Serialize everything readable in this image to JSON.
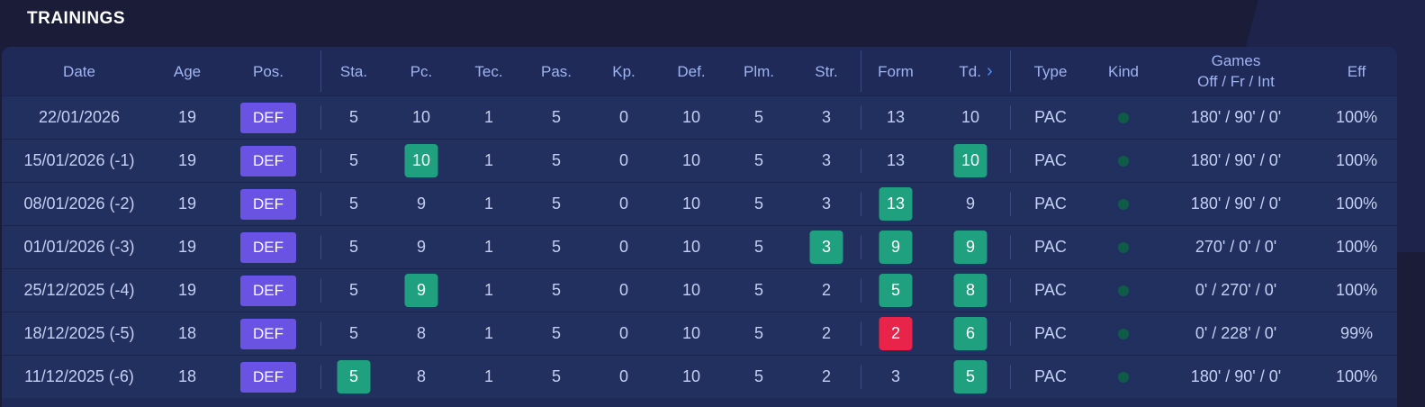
{
  "section_title": "TRAININGS",
  "colors": {
    "badge_pos": "#6a52e3",
    "highlight_green": "#1fa07e",
    "highlight_red": "#e8244a",
    "kind_dot": "#0e5c48"
  },
  "columns": {
    "date": "Date",
    "age": "Age",
    "pos": "Pos.",
    "sta": "Sta.",
    "pc": "Pc.",
    "tec": "Tec.",
    "pas": "Pas.",
    "kp": "Kp.",
    "def": "Def.",
    "plm": "Plm.",
    "str": "Str.",
    "form": "Form",
    "td": "Td.",
    "type": "Type",
    "kind": "Kind",
    "games_line1": "Games",
    "games_line2": "Off / Fr / Int",
    "eff": "Eff"
  },
  "td_chevron_icon": "chevron-right-icon",
  "rows": [
    {
      "date": "22/01/2026",
      "age": "19",
      "pos": "DEF",
      "sta": "5",
      "pc": "10",
      "tec": "1",
      "pas": "5",
      "kp": "0",
      "def": "10",
      "plm": "5",
      "str": "3",
      "form": "13",
      "td": "10",
      "type": "PAC",
      "games": "180' / 90' / 0'",
      "eff": "100%",
      "hl": {}
    },
    {
      "date": "15/01/2026 (-1)",
      "age": "19",
      "pos": "DEF",
      "sta": "5",
      "pc": "10",
      "tec": "1",
      "pas": "5",
      "kp": "0",
      "def": "10",
      "plm": "5",
      "str": "3",
      "form": "13",
      "td": "10",
      "type": "PAC",
      "games": "180' / 90' / 0'",
      "eff": "100%",
      "hl": {
        "pc": "green",
        "td": "green"
      }
    },
    {
      "date": "08/01/2026 (-2)",
      "age": "19",
      "pos": "DEF",
      "sta": "5",
      "pc": "9",
      "tec": "1",
      "pas": "5",
      "kp": "0",
      "def": "10",
      "plm": "5",
      "str": "3",
      "form": "13",
      "td": "9",
      "type": "PAC",
      "games": "180' / 90' / 0'",
      "eff": "100%",
      "hl": {
        "form": "green"
      }
    },
    {
      "date": "01/01/2026 (-3)",
      "age": "19",
      "pos": "DEF",
      "sta": "5",
      "pc": "9",
      "tec": "1",
      "pas": "5",
      "kp": "0",
      "def": "10",
      "plm": "5",
      "str": "3",
      "form": "9",
      "td": "9",
      "type": "PAC",
      "games": "270' / 0' / 0'",
      "eff": "100%",
      "hl": {
        "str": "green",
        "form": "green",
        "td": "green"
      }
    },
    {
      "date": "25/12/2025 (-4)",
      "age": "19",
      "pos": "DEF",
      "sta": "5",
      "pc": "9",
      "tec": "1",
      "pas": "5",
      "kp": "0",
      "def": "10",
      "plm": "5",
      "str": "2",
      "form": "5",
      "td": "8",
      "type": "PAC",
      "games": "0' / 270' / 0'",
      "eff": "100%",
      "hl": {
        "pc": "green",
        "form": "green",
        "td": "green"
      }
    },
    {
      "date": "18/12/2025 (-5)",
      "age": "18",
      "pos": "DEF",
      "sta": "5",
      "pc": "8",
      "tec": "1",
      "pas": "5",
      "kp": "0",
      "def": "10",
      "plm": "5",
      "str": "2",
      "form": "2",
      "td": "6",
      "type": "PAC",
      "games": "0' / 228' / 0'",
      "eff": "99%",
      "hl": {
        "form": "red",
        "td": "green"
      }
    },
    {
      "date": "11/12/2025 (-6)",
      "age": "18",
      "pos": "DEF",
      "sta": "5",
      "pc": "8",
      "tec": "1",
      "pas": "5",
      "kp": "0",
      "def": "10",
      "plm": "5",
      "str": "2",
      "form": "3",
      "td": "5",
      "type": "PAC",
      "games": "180' / 90' / 0'",
      "eff": "100%",
      "hl": {
        "sta": "green",
        "td": "green"
      }
    }
  ]
}
